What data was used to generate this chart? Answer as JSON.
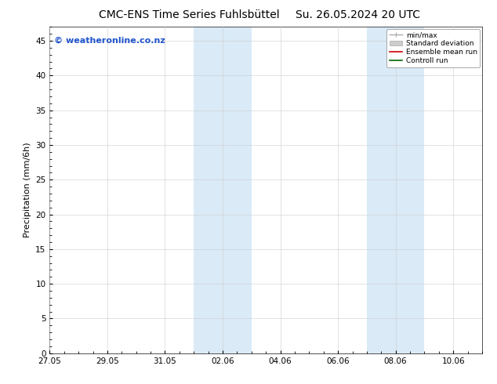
{
  "title_left": "CMC-ENS Time Series Fuhlsbüttel",
  "title_right": "Su. 26.05.2024 20 UTC",
  "ylabel": "Precipitation (mm/6h)",
  "watermark": "© weatheronline.co.nz",
  "ylim": [
    0,
    47
  ],
  "yticks": [
    0,
    5,
    10,
    15,
    20,
    25,
    30,
    35,
    40,
    45
  ],
  "xtick_labels": [
    "27.05",
    "29.05",
    "31.05",
    "02.06",
    "04.06",
    "06.06",
    "08.06",
    "10.06"
  ],
  "xtick_positions": [
    0,
    2,
    4,
    6,
    8,
    10,
    12,
    14
  ],
  "xlim": [
    0,
    15
  ],
  "shaded_bands": [
    {
      "x_start": 5.0,
      "x_end": 7.0
    },
    {
      "x_start": 11.0,
      "x_end": 13.0
    }
  ],
  "background_color": "#ffffff",
  "shade_color": "#daeaf7",
  "legend_items": [
    {
      "label": "min/max",
      "color": "#aaaaaa",
      "style": "line_with_cap"
    },
    {
      "label": "Standard deviation",
      "color": "#cccccc",
      "style": "filled_box"
    },
    {
      "label": "Ensemble mean run",
      "color": "#cc0000",
      "style": "line"
    },
    {
      "label": "Controll run",
      "color": "#006600",
      "style": "line"
    }
  ],
  "title_fontsize": 10,
  "axis_fontsize": 8,
  "tick_fontsize": 7.5,
  "watermark_fontsize": 8,
  "watermark_color": "#2255cc"
}
